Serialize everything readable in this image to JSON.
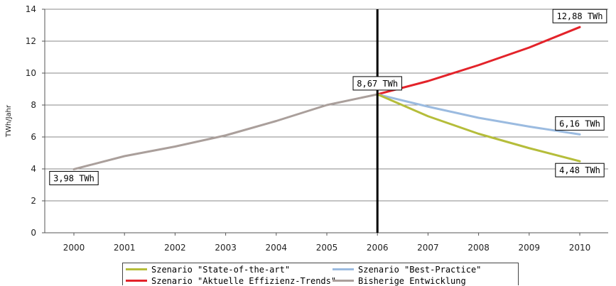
{
  "chart_data": {
    "type": "line",
    "ylabel": "TWh/Jahr",
    "xlabel": "",
    "ylim": [
      0,
      14
    ],
    "yticks": [
      0,
      2,
      4,
      6,
      8,
      10,
      12,
      14
    ],
    "categories": [
      "2000",
      "2001",
      "2002",
      "2003",
      "2004",
      "2005",
      "2006",
      "2007",
      "2008",
      "2009",
      "2010"
    ],
    "grid": "horizontal",
    "legend_position": "bottom",
    "marker_year": "2006",
    "series": [
      {
        "name": "Bisherige Entwicklung",
        "color": "#aa9f9b",
        "x": [
          "2000",
          "2001",
          "2002",
          "2003",
          "2004",
          "2005",
          "2006"
        ],
        "values": [
          3.98,
          4.8,
          5.4,
          6.1,
          7.0,
          8.0,
          8.67
        ]
      },
      {
        "name": "Szenario \"Aktuelle Effizienz-Trends\"",
        "color": "#e3232a",
        "x": [
          "2006",
          "2007",
          "2008",
          "2009",
          "2010"
        ],
        "values": [
          8.67,
          9.5,
          10.5,
          11.6,
          12.88
        ]
      },
      {
        "name": "Szenario \"Best-Practice\"",
        "color": "#9bbbe0",
        "x": [
          "2006",
          "2007",
          "2008",
          "2009",
          "2010"
        ],
        "values": [
          8.67,
          7.9,
          7.2,
          6.65,
          6.16
        ]
      },
      {
        "name": "Szenario \"State-of-the-art\"",
        "color": "#b5bd3a",
        "x": [
          "2006",
          "2007",
          "2008",
          "2009",
          "2010"
        ],
        "values": [
          8.67,
          7.3,
          6.2,
          5.3,
          4.48
        ]
      }
    ],
    "annotations": [
      {
        "text": "3,98 TWh",
        "x": "2000",
        "y": 3.98,
        "anchor": "below"
      },
      {
        "text": "8,67 TWh",
        "x": "2006",
        "y": 8.67,
        "anchor": "above"
      },
      {
        "text": "12,88 TWh",
        "x": "2010",
        "y": 12.88,
        "anchor": "above"
      },
      {
        "text": "6,16 TWh",
        "x": "2010",
        "y": 6.16,
        "anchor": "above"
      },
      {
        "text": "4,48 TWh",
        "x": "2010",
        "y": 4.48,
        "anchor": "below"
      }
    ]
  },
  "legend": [
    {
      "label": "Szenario \"State-of-the-art\"",
      "color": "#b5bd3a"
    },
    {
      "label": "Szenario \"Best-Practice\"",
      "color": "#9bbbe0"
    },
    {
      "label": "Szenario \"Aktuelle Effizienz-Trends\"",
      "color": "#e3232a"
    },
    {
      "label": "Bisherige Entwicklung",
      "color": "#aa9f9b"
    }
  ]
}
